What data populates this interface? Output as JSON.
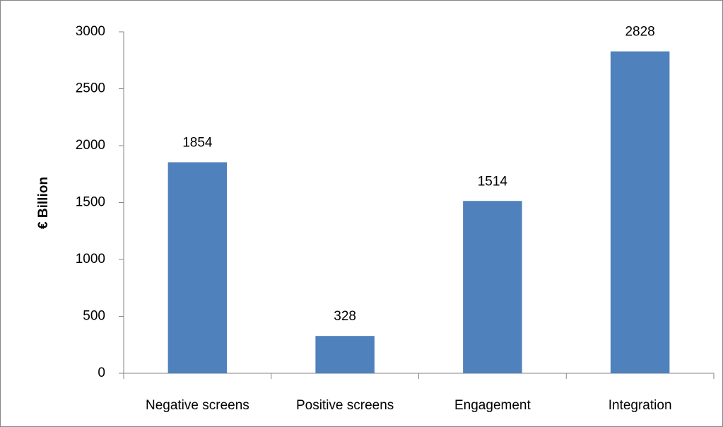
{
  "chart_data": {
    "type": "bar",
    "y_label": "€ Billion",
    "categories": [
      "Negative screens",
      "Positive screens",
      "Engagement",
      "Integration"
    ],
    "values": [
      1854,
      328,
      1514,
      2828
    ],
    "color": "#4f81bd",
    "ylim": [
      0,
      3000
    ],
    "yticks": [
      0,
      500,
      1000,
      1500,
      2000,
      2500,
      3000
    ],
    "grid": false
  }
}
